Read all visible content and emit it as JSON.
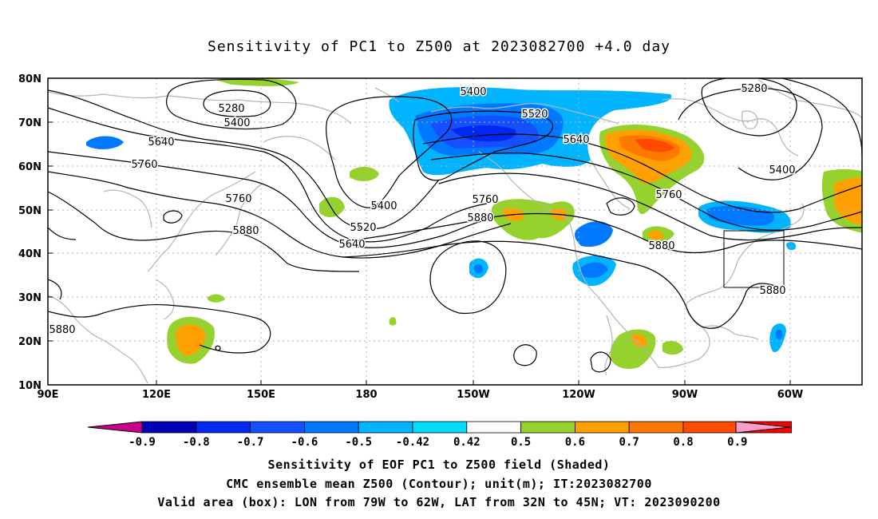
{
  "title": "Sensitivity of PC1 to Z500 at 2023082700 +4.0 day",
  "map": {
    "lat_labels": [
      "80N",
      "70N",
      "60N",
      "50N",
      "40N",
      "30N",
      "20N",
      "10N"
    ],
    "lon_labels": [
      "90E",
      "120E",
      "150E",
      "180",
      "150W",
      "120W",
      "90W",
      "60W"
    ],
    "contour_labels": [
      "5280",
      "5400",
      "5640",
      "5760",
      "5760",
      "5880",
      "5400",
      "5520",
      "5640",
      "5400",
      "5520",
      "5640",
      "5760",
      "5880",
      "5760",
      "5880",
      "5280",
      "5400",
      "5880",
      "5880"
    ],
    "colors": {
      "coast": "#b4b4b4",
      "contour": "#000000",
      "box": "#000000"
    }
  },
  "colorbar": {
    "labels": [
      "-0.9",
      "-0.8",
      "-0.7",
      "-0.6",
      "-0.5",
      "-0.42",
      "0.42",
      "0.5",
      "0.6",
      "0.7",
      "0.8",
      "0.9"
    ],
    "colors": [
      "#c8008c",
      "#0000b4",
      "#0028f0",
      "#1450ff",
      "#0078ff",
      "#00b4ff",
      "#00dcff",
      "#ffffff",
      "#96d22d",
      "#ffa000",
      "#ff7800",
      "#ff4b00",
      "#ff0000",
      "#ff9bc8"
    ]
  },
  "captions": {
    "line1": "Sensitivity of EOF PC1 to Z500 field (Shaded)",
    "line2": "CMC ensemble mean Z500 (Contour); unit(m); IT:2023082700",
    "line3": "Valid area (box): LON from 79W to 62W, LAT from 32N to 45N; VT: 2023090200"
  }
}
